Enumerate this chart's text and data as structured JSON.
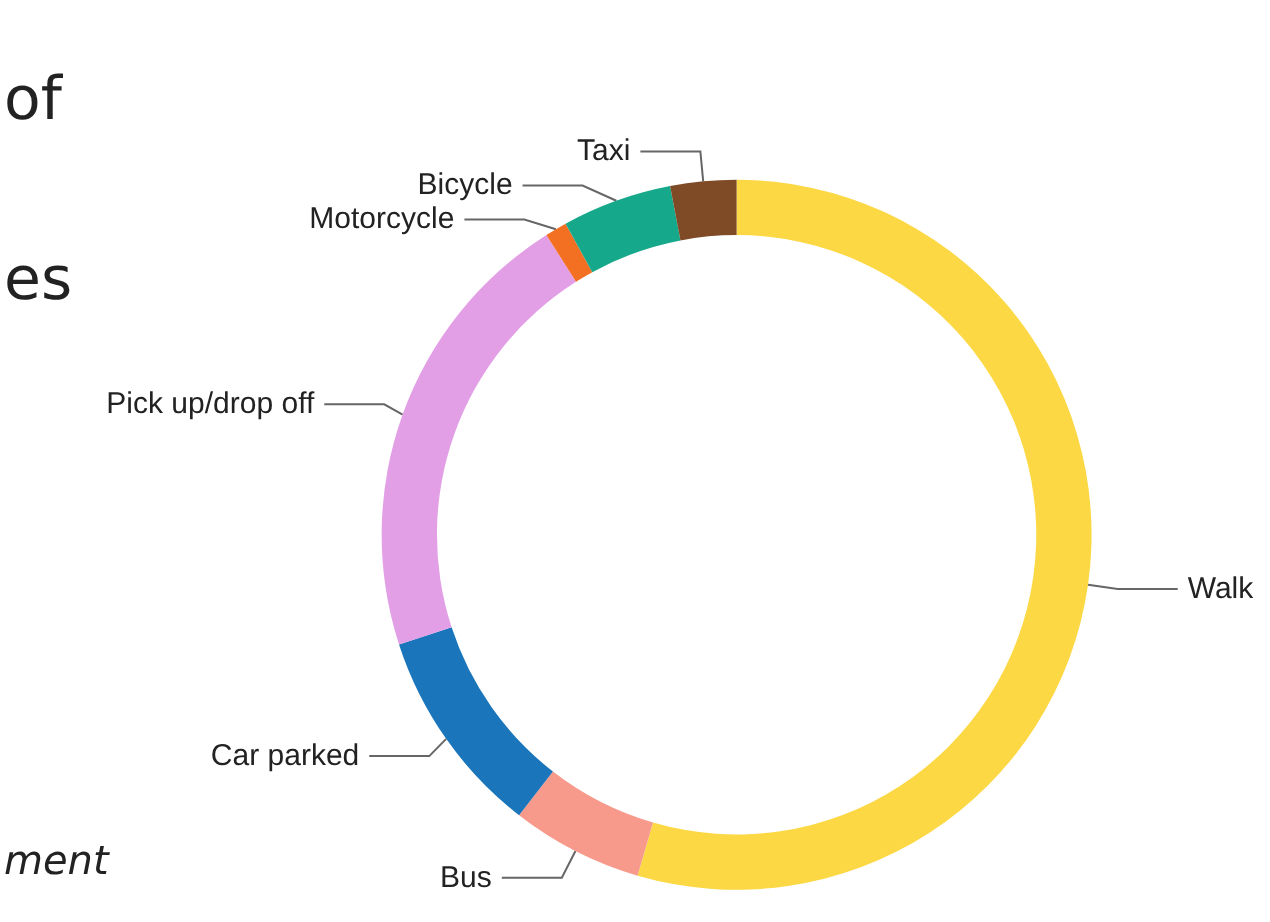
{
  "chart_data": {
    "type": "donut",
    "categories": [
      "Walk",
      "Bus",
      "Car parked",
      "Pick up/drop off",
      "Motorcycle",
      "Bicycle",
      "Taxi"
    ],
    "values": [
      54.5,
      6,
      9.5,
      21,
      1,
      5,
      3
    ],
    "colors": [
      "#fcd844",
      "#f79a8c",
      "#1a75bb",
      "#e39fe6",
      "#f36f21",
      "#16a88a",
      "#7f4a26"
    ],
    "annotations": [
      "of",
      "es",
      "ment"
    ],
    "legend": false
  }
}
